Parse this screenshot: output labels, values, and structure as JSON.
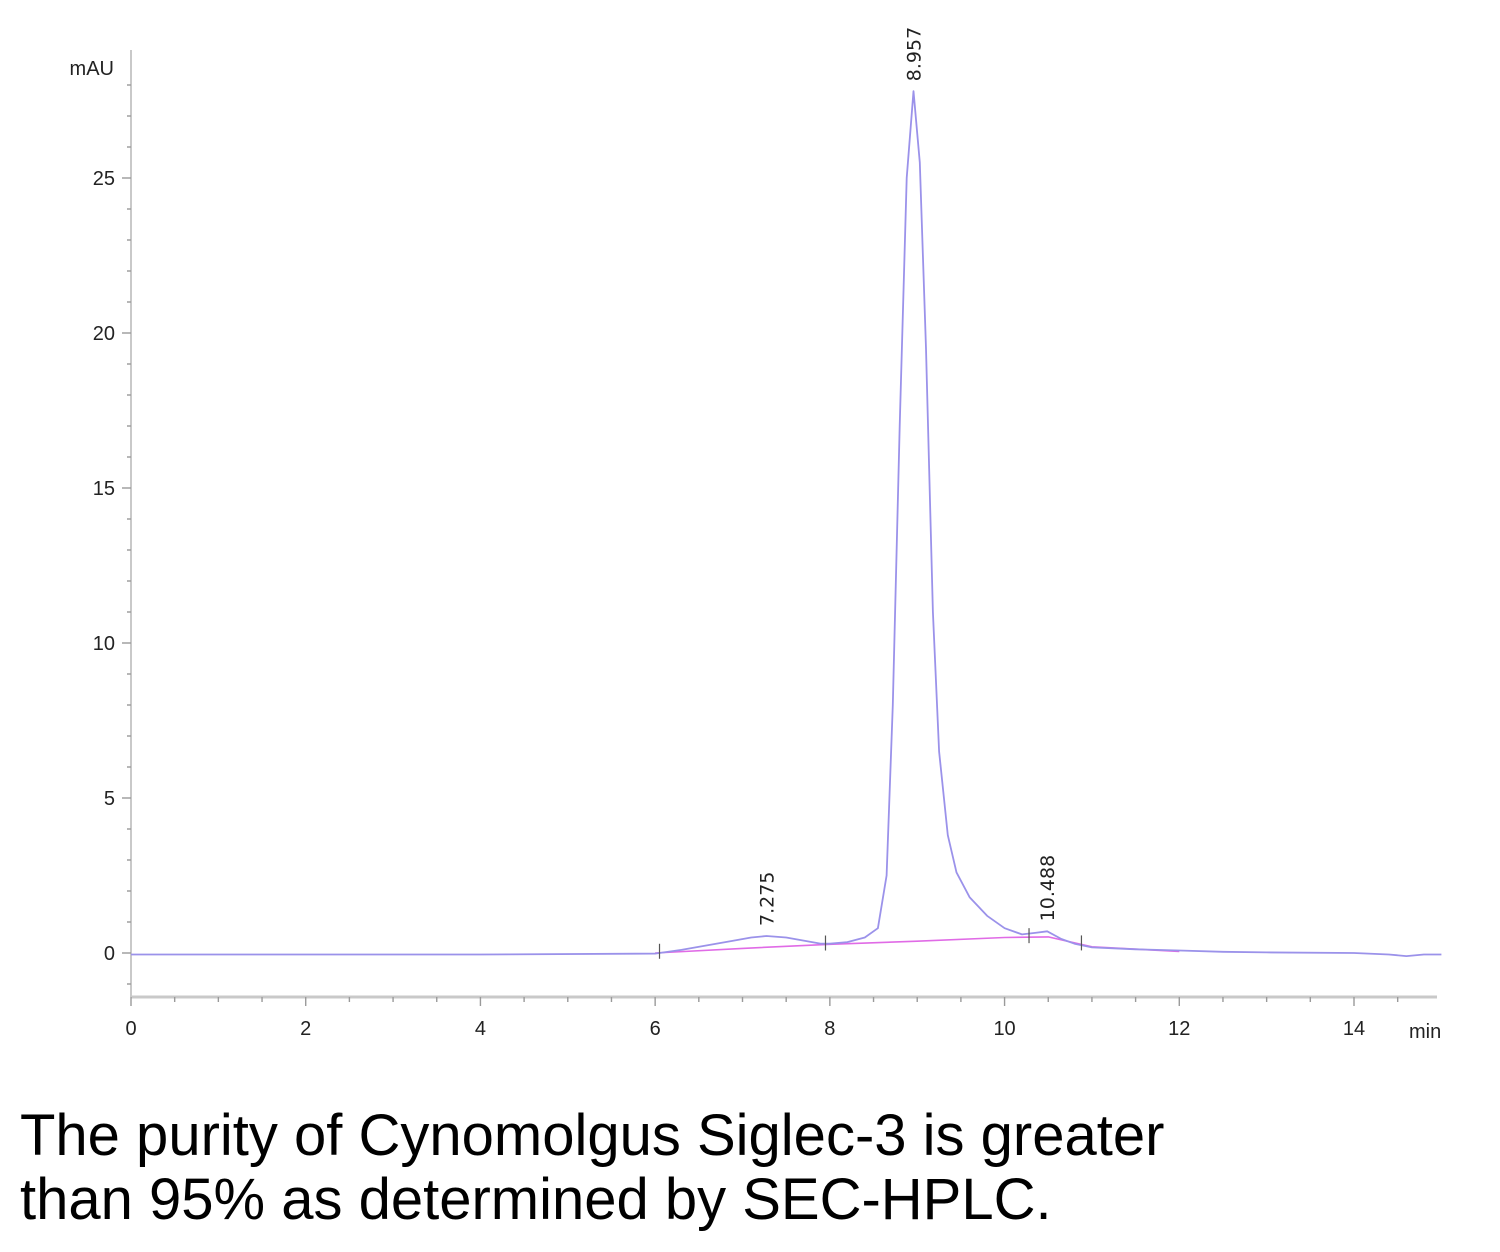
{
  "chart_data": {
    "type": "line",
    "title": "",
    "xlabel": "min",
    "ylabel": "mAU",
    "xlim": [
      0,
      15
    ],
    "ylim": [
      -1.4,
      28.5
    ],
    "x_ticks": [
      0,
      2,
      4,
      6,
      8,
      10,
      12,
      14
    ],
    "y_ticks": [
      0,
      5,
      10,
      15,
      20,
      25
    ],
    "grid": false,
    "legend": "none",
    "series": [
      {
        "role": "signal",
        "color": "#9b92ea",
        "x": [
          0,
          2,
          4,
          6.0,
          6.3,
          6.6,
          6.9,
          7.1,
          7.275,
          7.5,
          7.7,
          7.9,
          8.0,
          8.2,
          8.4,
          8.55,
          8.65,
          8.72,
          8.8,
          8.88,
          8.957,
          9.03,
          9.1,
          9.18,
          9.25,
          9.35,
          9.45,
          9.6,
          9.8,
          10.0,
          10.2,
          10.35,
          10.488,
          10.65,
          10.8,
          11.0,
          11.5,
          12.0,
          12.5,
          13.0,
          14.0,
          14.4,
          14.6,
          14.8,
          15.0
        ],
        "y": [
          -0.05,
          -0.05,
          -0.05,
          -0.02,
          0.1,
          0.25,
          0.4,
          0.5,
          0.55,
          0.5,
          0.4,
          0.3,
          0.3,
          0.35,
          0.5,
          0.8,
          2.5,
          8.0,
          17.0,
          25.0,
          27.8,
          25.5,
          19.5,
          11.0,
          6.5,
          3.8,
          2.6,
          1.8,
          1.2,
          0.8,
          0.6,
          0.65,
          0.7,
          0.45,
          0.3,
          0.18,
          0.12,
          0.08,
          0.04,
          0.02,
          0.0,
          -0.05,
          -0.1,
          -0.05,
          -0.05
        ]
      },
      {
        "role": "baseline",
        "color": "#e06be6",
        "x": [
          6.0,
          7.0,
          8.0,
          9.0,
          10.0,
          10.5,
          11.0,
          12.0
        ],
        "y": [
          0.0,
          0.15,
          0.28,
          0.38,
          0.5,
          0.52,
          0.2,
          0.05
        ]
      }
    ],
    "peaks": [
      {
        "label": "7.275",
        "x": 7.275,
        "y": 0.55
      },
      {
        "label": "8.957",
        "x": 8.957,
        "y": 27.8
      },
      {
        "label": "10.488",
        "x": 10.488,
        "y": 0.7
      }
    ],
    "integration_markers": [
      6.05,
      7.95,
      10.28,
      10.88
    ]
  },
  "caption": {
    "line1": "The purity of Cynomolgus Siglec-3 is greater",
    "line2": "than 95% as determined by SEC-HPLC."
  }
}
